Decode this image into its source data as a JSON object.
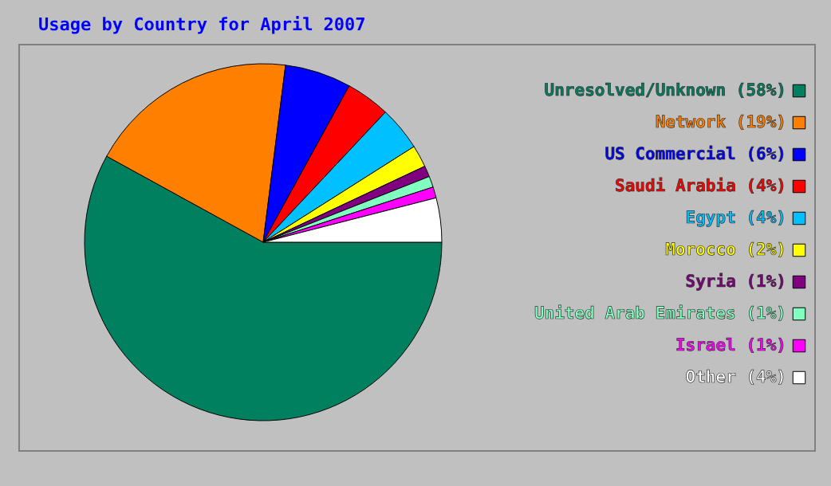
{
  "chart_data": {
    "type": "pie",
    "title": "Usage by Country for April 2007",
    "categories": [
      "Unresolved/Unknown",
      "Network",
      "US Commercial",
      "Saudi Arabia",
      "Egypt",
      "Morocco",
      "Syria",
      "United Arab Emirates",
      "Israel",
      "Other"
    ],
    "values": [
      58,
      19,
      6,
      4,
      4,
      2,
      1,
      1,
      1,
      4
    ],
    "value_labels": [
      "(58%)",
      "(19%)",
      "(6%)",
      "(4%)",
      "(4%)",
      "(2%)",
      "(1%)",
      "(1%)",
      "(1%)",
      "(4%)"
    ],
    "colors": [
      "#00805f",
      "#ff8000",
      "#0000ff",
      "#ff0000",
      "#00c0ff",
      "#ffff00",
      "#800080",
      "#80ffc0",
      "#ff00ff",
      "#ffffff"
    ],
    "legend": "right"
  }
}
